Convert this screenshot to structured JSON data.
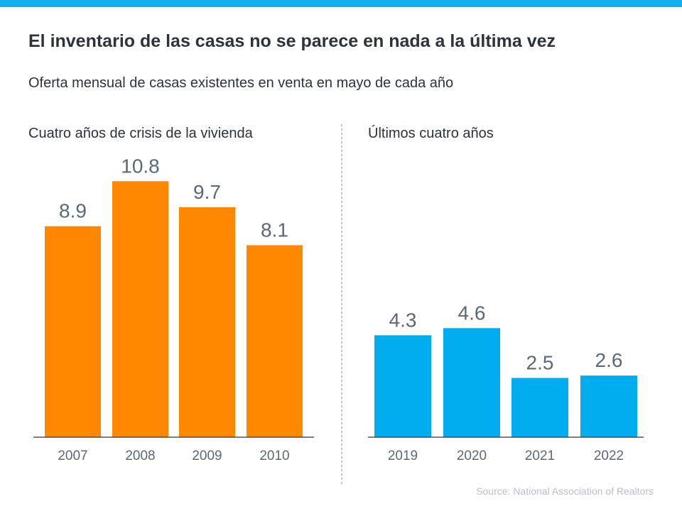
{
  "title": "El inventario de las casas no se parece en nada a la última vez",
  "subtitle": "Oferta mensual de casas existentes en venta en mayo de cada año",
  "source": "Source: National Association of Realtors",
  "colors": {
    "top_bar": "#13aeef",
    "left_bars": "#ff8800",
    "right_bars": "#00aeef"
  },
  "chart_data": [
    {
      "type": "bar",
      "title": "Cuatro años de crisis de la vivienda",
      "categories": [
        "2007",
        "2008",
        "2009",
        "2010"
      ],
      "values": [
        8.9,
        10.8,
        9.7,
        8.1
      ],
      "labels": [
        "8.9",
        "10.8",
        "9.7",
        "8.1"
      ],
      "color": "#ff8800",
      "ylim": [
        0,
        11
      ],
      "grid": false
    },
    {
      "type": "bar",
      "title": "Últimos cuatro años",
      "categories": [
        "2019",
        "2020",
        "2021",
        "2022"
      ],
      "values": [
        4.3,
        4.6,
        2.5,
        2.6
      ],
      "labels": [
        "4.3",
        "4.6",
        "2.5",
        "2.6"
      ],
      "color": "#00aeef",
      "ylim": [
        0,
        11
      ],
      "grid": false
    }
  ]
}
